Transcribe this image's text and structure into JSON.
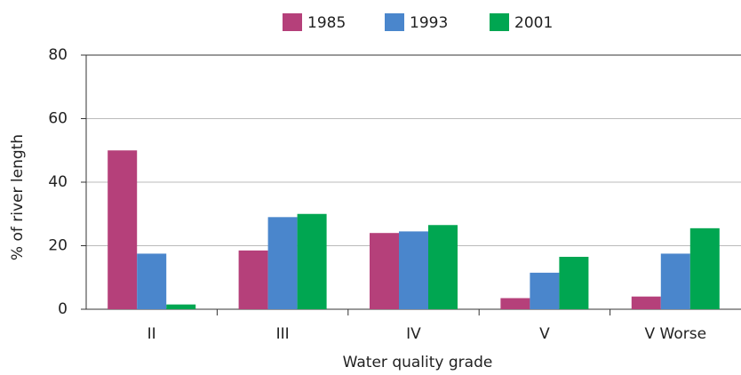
{
  "chart_data": {
    "type": "bar",
    "x_label": "Water quality grade",
    "y_label": "% of river length",
    "categories": [
      "II",
      "III",
      "IV",
      "V",
      "V Worse"
    ],
    "series": [
      {
        "name": "1985",
        "color": "#b5407a",
        "values": [
          50,
          18.5,
          24,
          3.5,
          4
        ]
      },
      {
        "name": "1993",
        "color": "#4a86cc",
        "values": [
          17.5,
          29,
          24.5,
          11.5,
          17.5
        ]
      },
      {
        "name": "2001",
        "color": "#00a651",
        "values": [
          1.5,
          30,
          26.5,
          16.5,
          25.5
        ]
      }
    ],
    "ylim": [
      0,
      80
    ],
    "yticks": [
      0,
      20,
      40,
      60,
      80
    ],
    "grid": true,
    "legend": "top"
  }
}
